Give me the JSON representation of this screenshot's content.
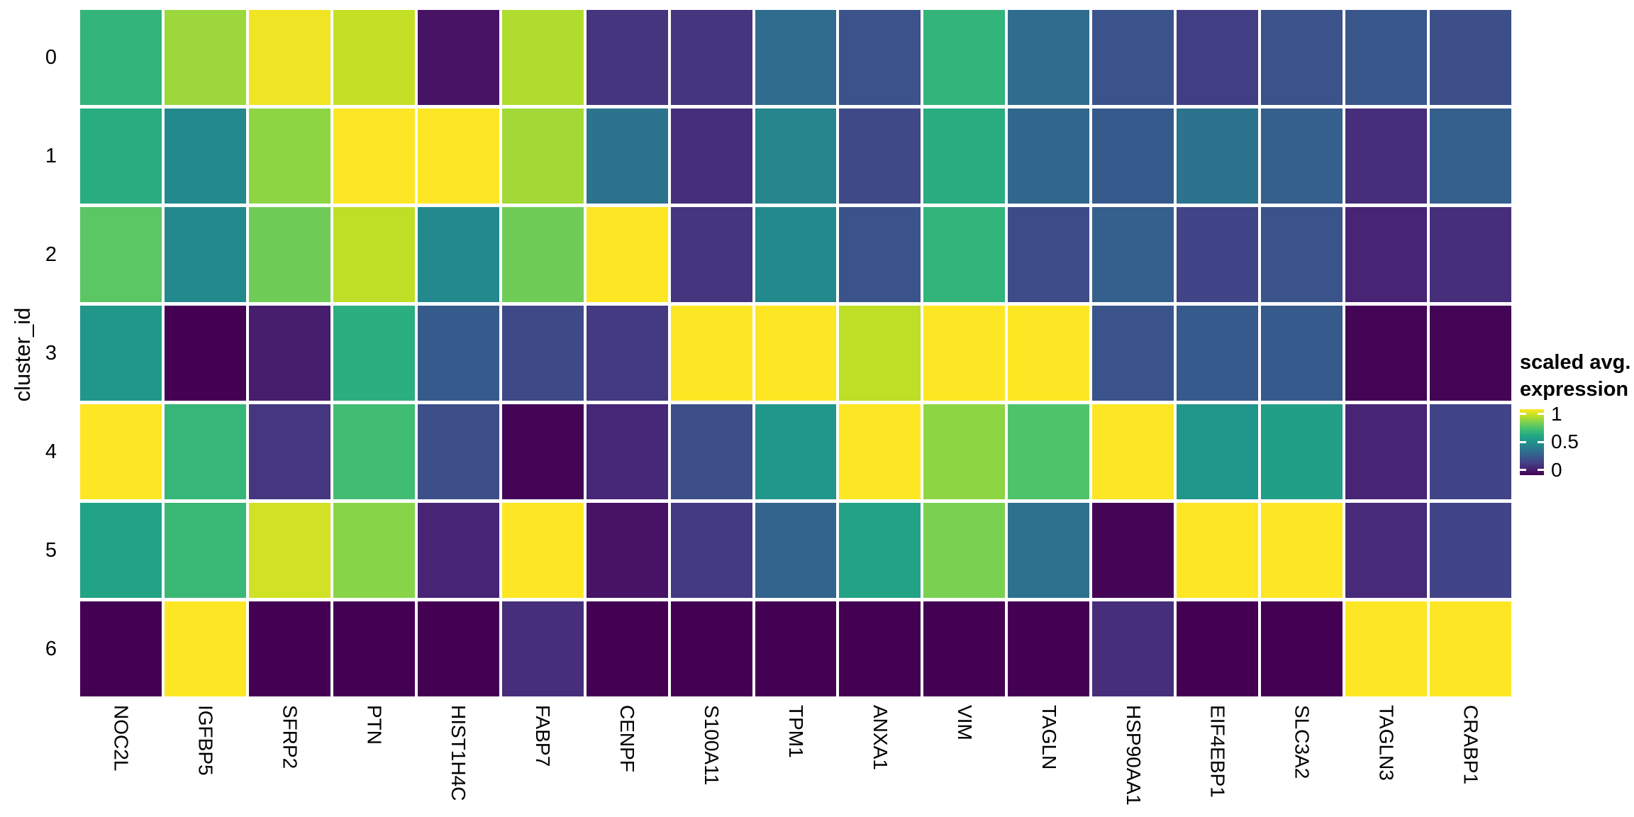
{
  "figure": {
    "background": "#ffffff"
  },
  "y_axis": {
    "title": "cluster_id"
  },
  "legend": {
    "title_line1": "scaled avg.",
    "title_line2": "expression",
    "tick_labels": [
      "1",
      "0.5",
      "0"
    ],
    "tick_values": [
      1,
      0.5,
      0
    ]
  },
  "chart_data": {
    "type": "heatmap",
    "title": "",
    "xlabel": "",
    "ylabel": "cluster_id",
    "legend_title": "scaled avg. expression",
    "colormap": "viridis",
    "color_range": [
      0,
      1
    ],
    "grid": false,
    "legend_position": "right",
    "x_categories": [
      "NOC2L",
      "IGFBP5",
      "SFRP2",
      "PTN",
      "HIST1H4C",
      "FABP7",
      "CENPF",
      "S100A11",
      "TPM1",
      "ANXA1",
      "VIM",
      "TAGLN",
      "HSP90AA1",
      "EIF4EBP1",
      "SLC3A2",
      "TAGLN3",
      "CRABP1"
    ],
    "y_categories": [
      "0",
      "1",
      "2",
      "3",
      "4",
      "5",
      "6"
    ],
    "values": [
      [
        0.65,
        0.85,
        0.98,
        0.91,
        0.05,
        0.88,
        0.15,
        0.15,
        0.35,
        0.25,
        0.65,
        0.35,
        0.26,
        0.18,
        0.25,
        0.27,
        0.24
      ],
      [
        0.62,
        0.47,
        0.83,
        1.0,
        1.0,
        0.86,
        0.38,
        0.13,
        0.45,
        0.22,
        0.62,
        0.33,
        0.28,
        0.38,
        0.3,
        0.13,
        0.3
      ],
      [
        0.74,
        0.47,
        0.78,
        0.9,
        0.47,
        0.78,
        1.0,
        0.15,
        0.47,
        0.26,
        0.65,
        0.23,
        0.3,
        0.2,
        0.26,
        0.1,
        0.13
      ],
      [
        0.52,
        0.0,
        0.08,
        0.63,
        0.28,
        0.22,
        0.17,
        1.0,
        1.0,
        0.9,
        1.0,
        1.0,
        0.26,
        0.28,
        0.28,
        0.01,
        0.01
      ],
      [
        1.0,
        0.66,
        0.16,
        0.69,
        0.24,
        0.01,
        0.11,
        0.24,
        0.52,
        1.0,
        0.83,
        0.72,
        1.0,
        0.52,
        0.56,
        0.1,
        0.2
      ],
      [
        0.58,
        0.67,
        0.93,
        0.82,
        0.1,
        1.0,
        0.05,
        0.17,
        0.32,
        0.58,
        0.8,
        0.37,
        0.01,
        1.0,
        1.0,
        0.12,
        0.2
      ],
      [
        0.0,
        1.0,
        0.0,
        0.0,
        0.0,
        0.13,
        0.0,
        0.0,
        0.0,
        0.0,
        0.0,
        0.0,
        0.13,
        0.0,
        0.0,
        1.0,
        1.0
      ]
    ]
  },
  "colors": {
    "viridis_stops": [
      "#440154",
      "#482475",
      "#414487",
      "#355f8d",
      "#2a788e",
      "#21918c",
      "#22a884",
      "#44bf70",
      "#7ad151",
      "#bddf26",
      "#fde725"
    ],
    "axis_text": "#000000",
    "tile_border": "#ffffff"
  }
}
